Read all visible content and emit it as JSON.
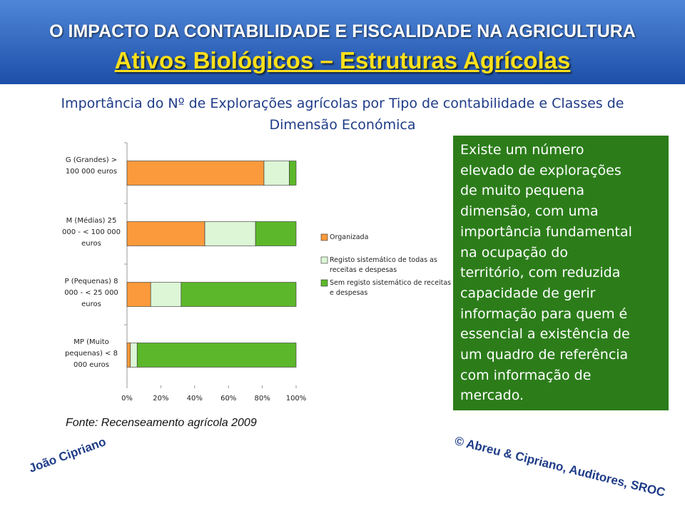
{
  "header": {
    "title": "O IMPACTO DA CONTABILIDADE E FISCALIDADE NA AGRICULTURA",
    "subtitle": "Ativos Biológicos – Estruturas Agrícolas"
  },
  "chart_data": {
    "type": "stacked-barh",
    "title": "Importância do Nº de Explorações agrícolas por Tipo de contabilidade e Classes de Dimensão Económica",
    "categories": [
      "G (Grandes) > 100 000 euros",
      "M (Médias) 25 000 - < 100 000 euros",
      "P (Pequenas) 8 000 - < 25 000 euros",
      "MP (Muito pequenas) < 8 000 euros"
    ],
    "series": [
      {
        "name": "Organizada",
        "color": "#fb9a3c",
        "values": [
          81,
          46,
          14,
          2
        ]
      },
      {
        "name": "Registo sistemático de todas as receitas e despesas",
        "color": "#dcf6d6",
        "values": [
          15,
          30,
          18,
          4
        ]
      },
      {
        "name": "Sem registo sistemático de receitas e despesas",
        "color": "#5cb82a",
        "values": [
          4,
          24,
          68,
          94
        ]
      }
    ],
    "xlim": [
      0,
      100
    ],
    "xticks": [
      {
        "value": 0,
        "label": "0%"
      },
      {
        "value": 20,
        "label": "20%"
      },
      {
        "value": 40,
        "label": "40%"
      },
      {
        "value": 60,
        "label": "60%"
      },
      {
        "value": 80,
        "label": "80%"
      },
      {
        "value": 100,
        "label": "100%"
      }
    ],
    "source": "Fonte: Recenseamento agrícola 2009"
  },
  "note": {
    "lines": [
      "Existe um número",
      "elevado de explorações",
      "de muito pequena",
      "dimensão, com uma",
      "importância fundamental",
      "na ocupação do",
      "território, com reduzida",
      "capacidade de gerir",
      "informação para quem é",
      "essencial a existência de",
      "um quadro de referência",
      "com informação de",
      "mercado."
    ]
  },
  "footer": {
    "author": "João Cipriano",
    "copyright": "© Abreu & Cipriano, Auditores, SROC"
  }
}
